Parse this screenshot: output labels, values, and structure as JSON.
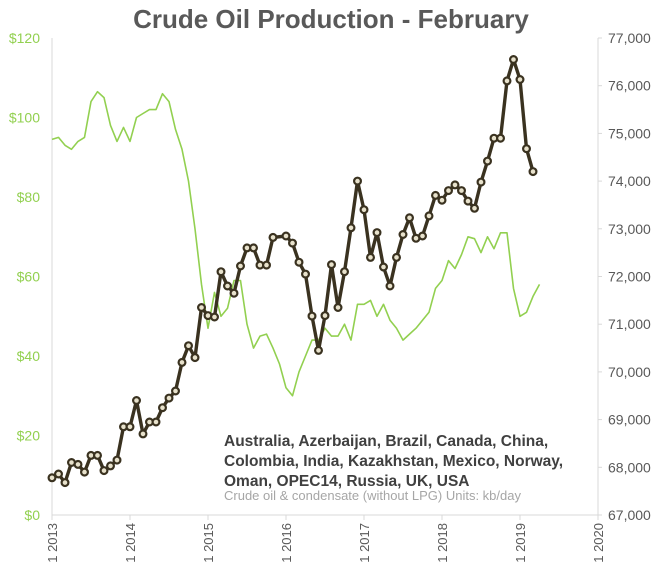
{
  "chart_data": {
    "type": "line",
    "title": "Crude Oil Production - February",
    "note": "Australia, Azerbaijan, Brazil, Canada, China, Colombia, India, Kazakhstan, Mexico, Norway, Oman, OPEC14, Russia, UK, USA",
    "subnote": "Crude oil & condensate (without LPG) Units: kb/day",
    "x_ticks": [
      "1 2013",
      "1 2014",
      "1 2015",
      "1 2016",
      "1 2017",
      "1 2018",
      "1 2019",
      "1 2020"
    ],
    "y_left": {
      "min": 0,
      "max": 120,
      "ticks": [
        "$0",
        "$20",
        "$40",
        "$60",
        "$80",
        "$100",
        "$120"
      ]
    },
    "y_right": {
      "min": 67000,
      "max": 77000,
      "ticks": [
        "67,000",
        "68,000",
        "69,000",
        "70,000",
        "71,000",
        "72,000",
        "73,000",
        "74,000",
        "75,000",
        "76,000",
        "77,000"
      ]
    },
    "colors": {
      "production": "#3a3220",
      "marker_fill": "#e8e2cc",
      "price": "#92d050",
      "title": "#595959",
      "axis": "#d9d9d9"
    },
    "series": [
      {
        "axis": "right",
        "values": [
          [
            2013.0,
            67780
          ],
          [
            2013.083,
            67860
          ],
          [
            2013.167,
            67680
          ],
          [
            2013.25,
            68100
          ],
          [
            2013.333,
            68060
          ],
          [
            2013.417,
            67900
          ],
          [
            2013.5,
            68250
          ],
          [
            2013.583,
            68250
          ],
          [
            2013.667,
            67930
          ],
          [
            2013.75,
            68030
          ],
          [
            2013.833,
            68150
          ],
          [
            2013.917,
            68850
          ],
          [
            2014.0,
            68850
          ],
          [
            2014.083,
            69400
          ],
          [
            2014.167,
            68700
          ],
          [
            2014.25,
            68950
          ],
          [
            2014.333,
            68950
          ],
          [
            2014.417,
            69250
          ],
          [
            2014.5,
            69450
          ],
          [
            2014.583,
            69600
          ],
          [
            2014.667,
            70200
          ],
          [
            2014.75,
            70550
          ],
          [
            2014.833,
            70300
          ],
          [
            2014.917,
            71350
          ],
          [
            2015.0,
            71180
          ],
          [
            2015.083,
            71150
          ],
          [
            2015.167,
            72100
          ],
          [
            2015.25,
            71800
          ],
          [
            2015.333,
            71650
          ],
          [
            2015.417,
            72220
          ],
          [
            2015.5,
            72600
          ],
          [
            2015.583,
            72600
          ],
          [
            2015.667,
            72240
          ],
          [
            2015.75,
            72240
          ],
          [
            2015.833,
            72820
          ],
          [
            2016.0,
            72850
          ],
          [
            2016.083,
            72700
          ],
          [
            2016.167,
            72300
          ],
          [
            2016.25,
            72050
          ],
          [
            2016.333,
            71170
          ],
          [
            2016.417,
            70450
          ],
          [
            2016.5,
            71180
          ],
          [
            2016.583,
            72250
          ],
          [
            2016.667,
            71350
          ],
          [
            2016.75,
            72100
          ],
          [
            2016.833,
            73020
          ],
          [
            2016.917,
            74000
          ],
          [
            2017.0,
            73400
          ],
          [
            2017.083,
            72400
          ],
          [
            2017.167,
            72920
          ],
          [
            2017.25,
            72200
          ],
          [
            2017.333,
            71800
          ],
          [
            2017.417,
            72400
          ],
          [
            2017.5,
            72880
          ],
          [
            2017.583,
            73230
          ],
          [
            2017.667,
            72800
          ],
          [
            2017.75,
            72850
          ],
          [
            2017.833,
            73270
          ],
          [
            2017.917,
            73700
          ],
          [
            2018.0,
            73600
          ],
          [
            2018.083,
            73800
          ],
          [
            2018.167,
            73920
          ],
          [
            2018.25,
            73800
          ],
          [
            2018.333,
            73580
          ],
          [
            2018.417,
            73430
          ],
          [
            2018.5,
            73980
          ],
          [
            2018.583,
            74420
          ],
          [
            2018.667,
            74900
          ],
          [
            2018.75,
            74900
          ],
          [
            2018.833,
            76100
          ],
          [
            2018.917,
            76550
          ],
          [
            2019.0,
            76130
          ],
          [
            2019.083,
            74680
          ],
          [
            2019.167,
            74200
          ]
        ]
      },
      {
        "axis": "left",
        "values": [
          [
            2013.0,
            94.5
          ],
          [
            2013.083,
            95
          ],
          [
            2013.167,
            93
          ],
          [
            2013.25,
            92
          ],
          [
            2013.333,
            94
          ],
          [
            2013.417,
            95
          ],
          [
            2013.5,
            104
          ],
          [
            2013.583,
            106.5
          ],
          [
            2013.667,
            105
          ],
          [
            2013.75,
            98
          ],
          [
            2013.833,
            94
          ],
          [
            2013.917,
            97.5
          ],
          [
            2014.0,
            94
          ],
          [
            2014.083,
            100
          ],
          [
            2014.167,
            101
          ],
          [
            2014.25,
            102
          ],
          [
            2014.333,
            102
          ],
          [
            2014.417,
            106
          ],
          [
            2014.5,
            104
          ],
          [
            2014.583,
            97
          ],
          [
            2014.667,
            92
          ],
          [
            2014.75,
            84
          ],
          [
            2014.833,
            72
          ],
          [
            2014.917,
            58
          ],
          [
            2015.0,
            47
          ],
          [
            2015.083,
            56
          ],
          [
            2015.167,
            50
          ],
          [
            2015.25,
            52
          ],
          [
            2015.333,
            59
          ],
          [
            2015.417,
            59
          ],
          [
            2015.5,
            48
          ],
          [
            2015.583,
            42
          ],
          [
            2015.667,
            45
          ],
          [
            2015.75,
            45.5
          ],
          [
            2015.833,
            42
          ],
          [
            2015.917,
            38
          ],
          [
            2016.0,
            32
          ],
          [
            2016.083,
            30
          ],
          [
            2016.167,
            36
          ],
          [
            2016.25,
            40
          ],
          [
            2016.333,
            44
          ],
          [
            2016.417,
            44
          ],
          [
            2016.5,
            47
          ],
          [
            2016.583,
            45
          ],
          [
            2016.667,
            45
          ],
          [
            2016.75,
            48
          ],
          [
            2016.833,
            44
          ],
          [
            2016.917,
            53
          ],
          [
            2017.0,
            53
          ],
          [
            2017.083,
            54
          ],
          [
            2017.167,
            50
          ],
          [
            2017.25,
            53
          ],
          [
            2017.333,
            49
          ],
          [
            2017.417,
            47
          ],
          [
            2017.5,
            44
          ],
          [
            2017.583,
            45.5
          ],
          [
            2017.667,
            47
          ],
          [
            2017.75,
            49
          ],
          [
            2017.833,
            51
          ],
          [
            2017.917,
            57
          ],
          [
            2018.0,
            59
          ],
          [
            2018.083,
            64
          ],
          [
            2018.167,
            62
          ],
          [
            2018.25,
            65.5
          ],
          [
            2018.333,
            70
          ],
          [
            2018.417,
            69.5
          ],
          [
            2018.5,
            66
          ],
          [
            2018.583,
            70
          ],
          [
            2018.667,
            67
          ],
          [
            2018.75,
            71
          ],
          [
            2018.833,
            71
          ],
          [
            2018.917,
            57
          ],
          [
            2019.0,
            50
          ],
          [
            2019.083,
            51
          ],
          [
            2019.167,
            55
          ],
          [
            2019.25,
            58
          ]
        ]
      }
    ]
  }
}
